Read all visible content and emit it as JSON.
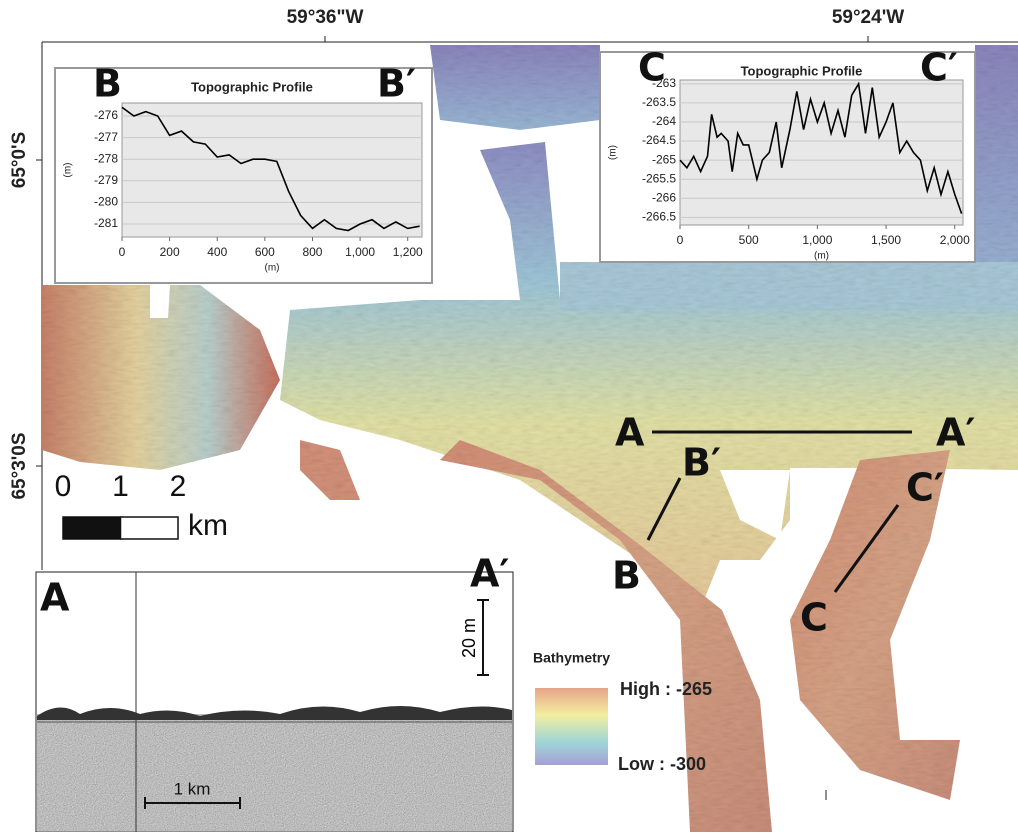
{
  "map": {
    "lon_labels": [
      "59°36\"W",
      "59°24'W"
    ],
    "lat_labels": [
      "65°0'S",
      "65°3'0S"
    ],
    "section_labels": {
      "a": "A",
      "a_end": "A′",
      "b": "B",
      "b_end": "B′",
      "c": "C",
      "c_end": "C′"
    }
  },
  "scale_bar": {
    "ticks": [
      0,
      1,
      2
    ],
    "unit": "km"
  },
  "legend": {
    "title": "Bathymetry",
    "high": "High : -265",
    "low": "Low : -300"
  },
  "seismic": {
    "start": "A",
    "end": "A′",
    "vertical_scale": "20 m",
    "horizontal_scale": "1 km"
  },
  "chart_data": [
    {
      "type": "line",
      "title": "Topographic Profile",
      "start_label": "B",
      "end_label": "B′",
      "x_label": "(m)",
      "y_label": "(m)",
      "color": "#000000",
      "x": [
        0,
        50,
        100,
        150,
        200,
        250,
        300,
        350,
        400,
        450,
        500,
        550,
        600,
        650,
        700,
        750,
        800,
        850,
        900,
        950,
        1000,
        1050,
        1100,
        1150,
        1200,
        1250
      ],
      "values": [
        -275.6,
        -276.0,
        -275.8,
        -276.0,
        -276.9,
        -276.7,
        -277.2,
        -277.3,
        -277.9,
        -277.8,
        -278.2,
        -278.0,
        -278.0,
        -278.1,
        -279.5,
        -280.6,
        -281.2,
        -280.8,
        -281.2,
        -281.3,
        -281.0,
        -280.8,
        -281.2,
        -280.9,
        -281.2,
        -281.1
      ],
      "xlim": [
        0,
        1260
      ],
      "ylim": [
        -281.6,
        -275.4
      ],
      "xticks": [
        0,
        200,
        400,
        600,
        800,
        {
          "value": 1000,
          "label": "1,000"
        },
        {
          "value": 1200,
          "label": "1,200"
        }
      ],
      "yticks": [
        -276,
        -277,
        -278,
        -279,
        -280,
        -281
      ],
      "grid": true
    },
    {
      "type": "line",
      "title": "Topographic Profile",
      "start_label": "C",
      "end_label": "C′",
      "x_label": "(m)",
      "y_label": "(m)",
      "color": "#000000",
      "x": [
        0,
        50,
        100,
        150,
        200,
        230,
        270,
        300,
        350,
        380,
        420,
        460,
        500,
        560,
        600,
        650,
        700,
        740,
        800,
        850,
        900,
        950,
        1000,
        1050,
        1100,
        1150,
        1200,
        1250,
        1300,
        1350,
        1400,
        1450,
        1500,
        1550,
        1600,
        1650,
        1700,
        1750,
        1800,
        1850,
        1900,
        1950,
        2000,
        2050
      ],
      "values": [
        -265.0,
        -265.2,
        -264.9,
        -265.3,
        -264.9,
        -263.8,
        -264.4,
        -264.3,
        -264.5,
        -265.3,
        -264.3,
        -264.6,
        -264.6,
        -265.5,
        -265.0,
        -264.8,
        -264.0,
        -265.2,
        -264.2,
        -263.2,
        -264.2,
        -263.4,
        -264.0,
        -263.5,
        -264.3,
        -263.7,
        -264.4,
        -263.3,
        -263.0,
        -264.3,
        -263.1,
        -264.4,
        -264.0,
        -263.5,
        -264.8,
        -264.5,
        -264.8,
        -265.0,
        -265.8,
        -265.2,
        -265.9,
        -265.3,
        -265.9,
        -266.4
      ],
      "xlim": [
        0,
        2060
      ],
      "ylim": [
        -266.7,
        -262.9
      ],
      "xticks": [
        0,
        500,
        {
          "value": 1000,
          "label": "1,000"
        },
        {
          "value": 1500,
          "label": "1,500"
        },
        {
          "value": 2000,
          "label": "2,000"
        }
      ],
      "yticks": [
        -263,
        -263.5,
        -264,
        -264.5,
        -265,
        -265.5,
        -266,
        -266.5
      ],
      "grid": true
    }
  ]
}
